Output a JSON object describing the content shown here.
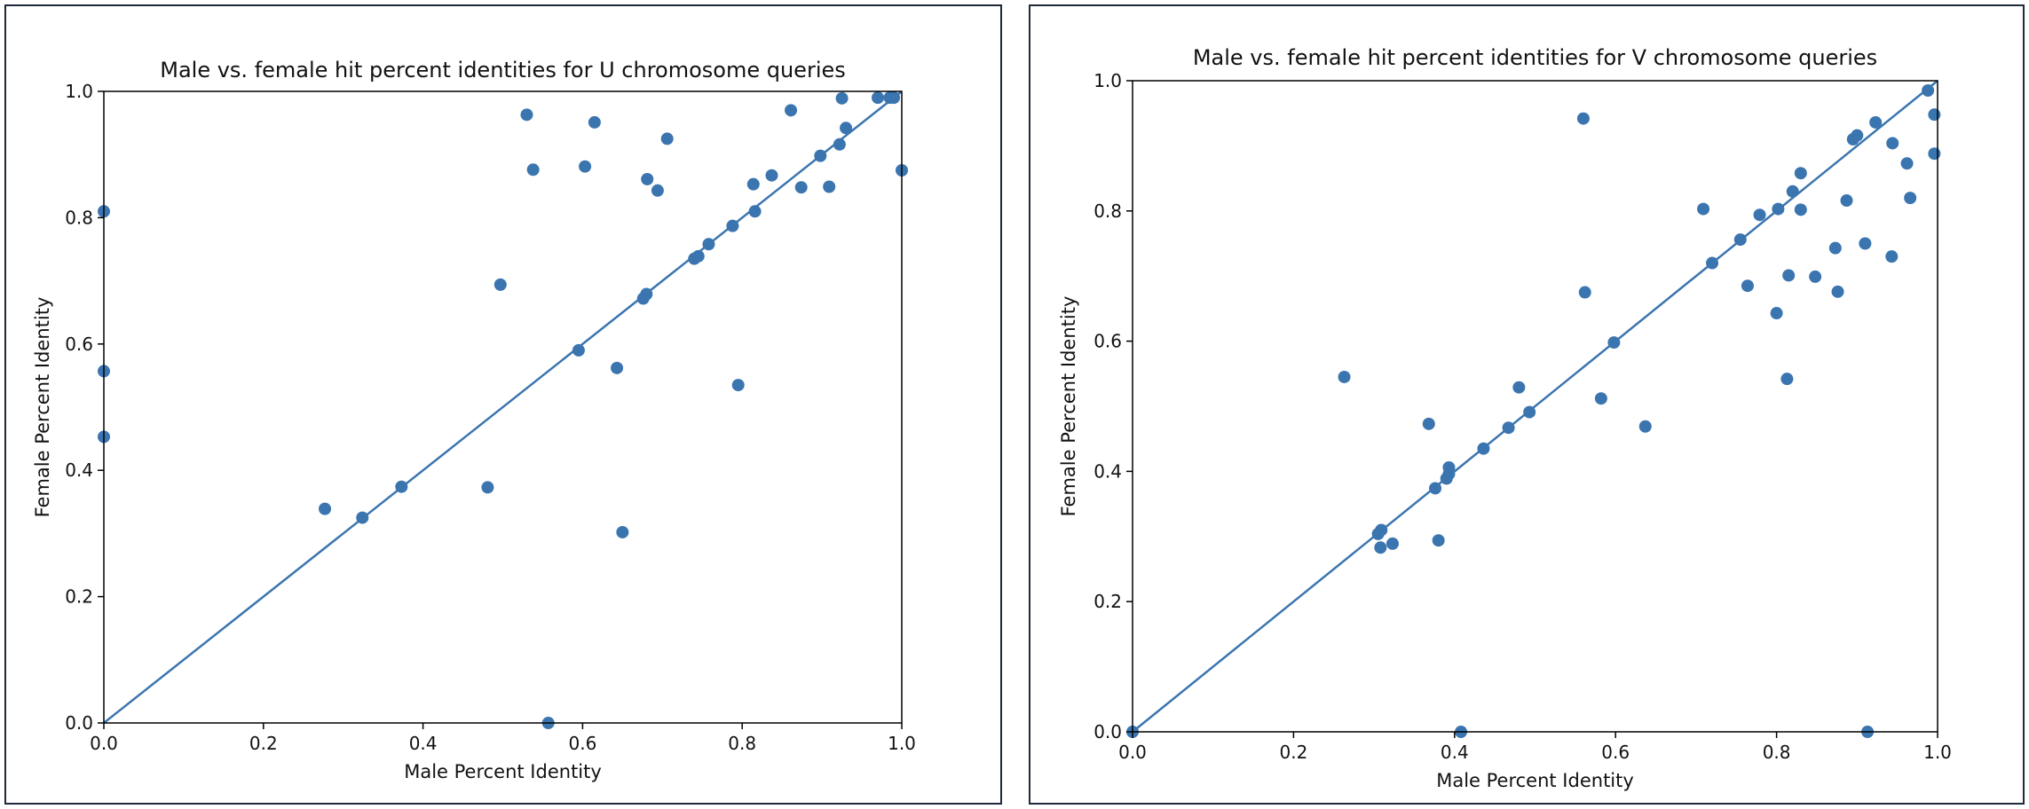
{
  "chart_data": [
    {
      "type": "scatter",
      "title": "Male vs. female hit percent identities for U chromosome queries",
      "xlabel": "Male Percent Identity",
      "ylabel": "Female Percent Identity",
      "xlim": [
        0,
        1
      ],
      "ylim": [
        0,
        1
      ],
      "xticks": [
        "0.0",
        "0.2",
        "0.4",
        "0.6",
        "0.8",
        "1.0"
      ],
      "yticks": [
        "0.0",
        "0.2",
        "0.4",
        "0.6",
        "0.8",
        "1.0"
      ],
      "grid": false,
      "color": "#3b75af",
      "reference_line": [
        [
          0,
          0
        ],
        [
          1,
          1
        ]
      ],
      "points": [
        [
          0.0,
          0.81
        ],
        [
          0.0,
          0.557
        ],
        [
          0.0,
          0.453
        ],
        [
          0.277,
          0.339
        ],
        [
          0.324,
          0.325
        ],
        [
          0.373,
          0.374
        ],
        [
          0.481,
          0.373
        ],
        [
          0.497,
          0.694
        ],
        [
          0.53,
          0.963
        ],
        [
          0.538,
          0.876
        ],
        [
          0.557,
          0.0
        ],
        [
          0.595,
          0.59
        ],
        [
          0.603,
          0.881
        ],
        [
          0.615,
          0.951
        ],
        [
          0.643,
          0.562
        ],
        [
          0.65,
          0.302
        ],
        [
          0.676,
          0.672
        ],
        [
          0.68,
          0.679
        ],
        [
          0.681,
          0.861
        ],
        [
          0.694,
          0.843
        ],
        [
          0.706,
          0.925
        ],
        [
          0.74,
          0.735
        ],
        [
          0.745,
          0.739
        ],
        [
          0.758,
          0.758
        ],
        [
          0.788,
          0.787
        ],
        [
          0.795,
          0.535
        ],
        [
          0.814,
          0.853
        ],
        [
          0.816,
          0.81
        ],
        [
          0.837,
          0.867
        ],
        [
          0.861,
          0.97
        ],
        [
          0.874,
          0.848
        ],
        [
          0.898,
          0.898
        ],
        [
          0.909,
          0.849
        ],
        [
          0.922,
          0.916
        ],
        [
          0.925,
          0.989
        ],
        [
          0.93,
          0.942
        ],
        [
          0.97,
          0.99
        ],
        [
          0.985,
          0.99
        ],
        [
          0.99,
          0.99
        ],
        [
          1.0,
          0.875
        ]
      ]
    },
    {
      "type": "scatter",
      "title": "Male vs. female hit percent identities for V chromosome queries",
      "xlabel": "Male Percent Identity",
      "ylabel": "Female Percent Identity",
      "xlim": [
        0,
        1
      ],
      "ylim": [
        0,
        1
      ],
      "xticks": [
        "0.0",
        "0.2",
        "0.4",
        "0.6",
        "0.8",
        "1.0"
      ],
      "yticks": [
        "0.0",
        "0.2",
        "0.4",
        "0.6",
        "0.8",
        "1.0"
      ],
      "grid": false,
      "color": "#3b75af",
      "reference_line": [
        [
          0,
          0
        ],
        [
          1,
          1
        ]
      ],
      "points": [
        [
          0.0,
          0.0
        ],
        [
          0.263,
          0.545
        ],
        [
          0.305,
          0.304
        ],
        [
          0.309,
          0.31
        ],
        [
          0.308,
          0.283
        ],
        [
          0.323,
          0.289
        ],
        [
          0.368,
          0.473
        ],
        [
          0.376,
          0.374
        ],
        [
          0.38,
          0.294
        ],
        [
          0.39,
          0.389
        ],
        [
          0.393,
          0.396
        ],
        [
          0.393,
          0.406
        ],
        [
          0.408,
          0.0
        ],
        [
          0.436,
          0.435
        ],
        [
          0.467,
          0.467
        ],
        [
          0.48,
          0.529
        ],
        [
          0.493,
          0.491
        ],
        [
          0.56,
          0.942
        ],
        [
          0.562,
          0.675
        ],
        [
          0.582,
          0.512
        ],
        [
          0.598,
          0.598
        ],
        [
          0.637,
          0.469
        ],
        [
          0.709,
          0.803
        ],
        [
          0.72,
          0.72
        ],
        [
          0.755,
          0.756
        ],
        [
          0.764,
          0.685
        ],
        [
          0.779,
          0.794
        ],
        [
          0.8,
          0.643
        ],
        [
          0.802,
          0.803
        ],
        [
          0.813,
          0.542
        ],
        [
          0.815,
          0.701
        ],
        [
          0.82,
          0.83
        ],
        [
          0.83,
          0.802
        ],
        [
          0.83,
          0.858
        ],
        [
          0.848,
          0.699
        ],
        [
          0.873,
          0.743
        ],
        [
          0.876,
          0.676
        ],
        [
          0.887,
          0.816
        ],
        [
          0.895,
          0.91
        ],
        [
          0.9,
          0.916
        ],
        [
          0.91,
          0.75
        ],
        [
          0.913,
          0.0
        ],
        [
          0.923,
          0.936
        ],
        [
          0.943,
          0.73
        ],
        [
          0.944,
          0.904
        ],
        [
          0.962,
          0.873
        ],
        [
          0.966,
          0.82
        ],
        [
          0.988,
          0.985
        ],
        [
          0.996,
          0.948
        ],
        [
          0.996,
          0.888
        ]
      ]
    }
  ]
}
